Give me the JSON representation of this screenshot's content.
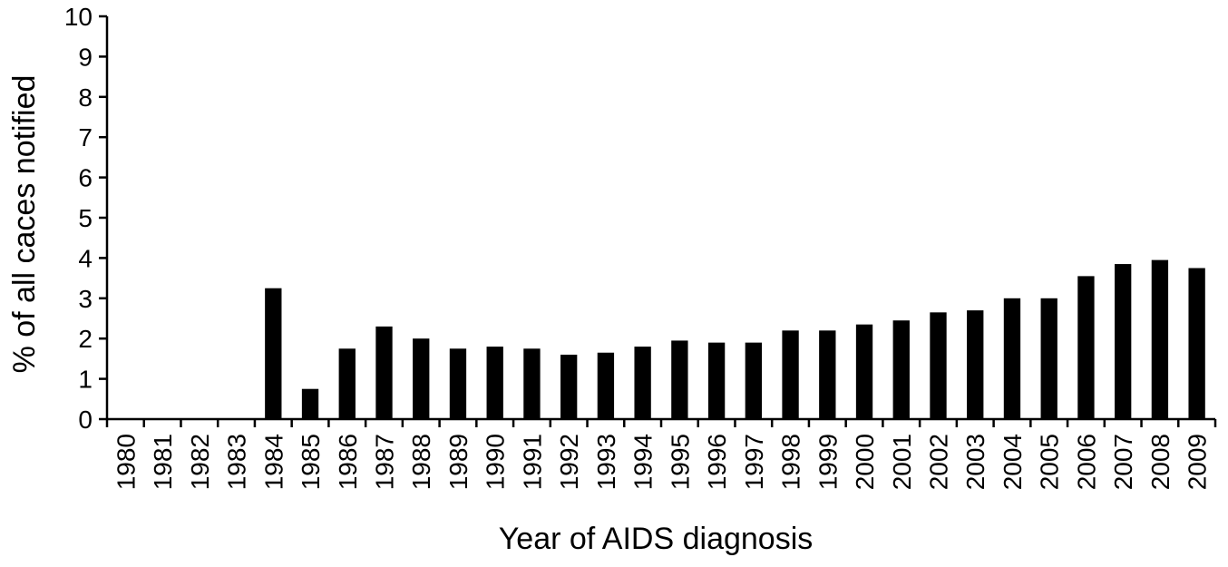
{
  "chart_data": {
    "type": "bar",
    "xlabel": "Year of AIDS diagnosis",
    "ylabel": "% of all caces notified",
    "ylim": [
      0,
      10
    ],
    "yticks": [
      "0",
      "1",
      "2",
      "3",
      "4",
      "5",
      "6",
      "7",
      "8",
      "9",
      "10"
    ],
    "categories": [
      "1980",
      "1981",
      "1982",
      "1983",
      "1984",
      "1985",
      "1986",
      "1987",
      "1988",
      "1989",
      "1990",
      "1991",
      "1992",
      "1993",
      "1994",
      "1995",
      "1996",
      "1997",
      "1998",
      "1999",
      "2000",
      "2001",
      "2002",
      "2003",
      "2004",
      "2005",
      "2006",
      "2007",
      "2008",
      "2009"
    ],
    "values": [
      0,
      0,
      0,
      0,
      3.25,
      0.75,
      1.75,
      2.3,
      2.0,
      1.75,
      1.8,
      1.75,
      1.6,
      1.65,
      1.8,
      1.95,
      1.9,
      1.9,
      2.2,
      2.2,
      2.35,
      2.45,
      2.65,
      2.7,
      3.0,
      3.0,
      3.55,
      3.85,
      3.95,
      3.75
    ],
    "bar_color": "#000000",
    "grid": false,
    "legend": "none"
  }
}
